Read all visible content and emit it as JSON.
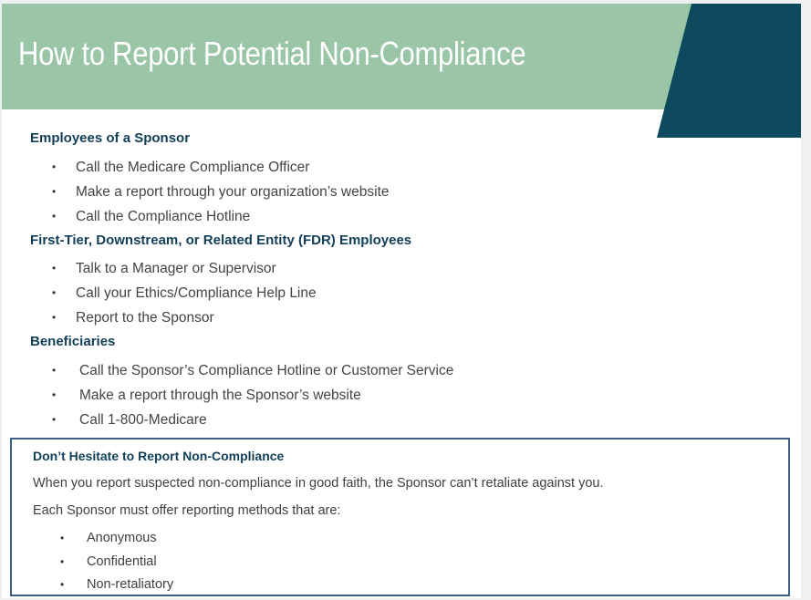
{
  "title": "How to Report Potential Non-Compliance",
  "colors": {
    "title_band": "#9ac5a7",
    "corner_accent": "#0d4a5e",
    "heading": "#123f58",
    "callout_border": "#3c5f88"
  },
  "sections": [
    {
      "heading": "Employees of a Sponsor",
      "items": [
        "Call the Medicare Compliance Officer",
        "Make a report through your organization’s website",
        "Call the Compliance Hotline"
      ]
    },
    {
      "heading": "First-Tier, Downstream, or Related Entity (FDR) Employees",
      "items": [
        "Talk to a Manager or Supervisor",
        "Call your Ethics/Compliance Help Line",
        "Report to the Sponsor"
      ]
    },
    {
      "heading": "Beneficiaries",
      "items": [
        "Call the Sponsor’s Compliance Hotline or Customer Service",
        "Make a report through the Sponsor’s website",
        "Call 1-800-Medicare"
      ]
    }
  ],
  "callout": {
    "title": "Don’t Hesitate to Report Non-Compliance",
    "text1": "When you report suspected non-compliance in good faith, the Sponsor can’t retaliate against you.",
    "text2": "Each Sponsor must offer reporting methods that are:",
    "items": [
      "Anonymous",
      "Confidential",
      "Non-retaliatory"
    ]
  },
  "bullet_glyph": "•"
}
